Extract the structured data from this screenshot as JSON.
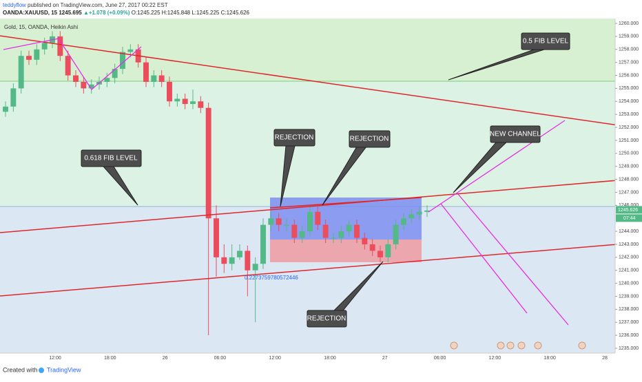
{
  "header": {
    "author": "teddyflow",
    "published": "published on TradingView.com, June 27, 2017 00:22 EST",
    "symbol": "OANDA:XAUUSD, 15",
    "last": "1245.695",
    "change": "▲+1.078 (+0.09%)",
    "ohlc": "O:1245.225 H:1245.848 L:1245.225 C:1245.626"
  },
  "legend": "Gold, 15, OANDA, Heikin Ashi",
  "candles": {
    "open": [
      1253.2,
      1253.6,
      1255,
      1257.5,
      1257.2,
      1258,
      1258.5,
      1259,
      1257.5,
      1256,
      1255.5,
      1255,
      1255.3,
      1255.5,
      1255.8,
      1256.5,
      1257.8,
      1258,
      1257,
      1255.5,
      1256,
      1255.5,
      1254,
      1254.2,
      1253.8,
      1254,
      1253.5,
      1245,
      1242,
      1241.5,
      1242,
      1242.5,
      1241,
      1241.5,
      1244.5,
      1245,
      1244.5,
      1244.5,
      1243.5,
      1244,
      1245.5,
      1244.5,
      1243.5,
      1243.5,
      1244,
      1244.5,
      1243.5,
      1243,
      1242.5,
      1242,
      1243,
      1244.5,
      1245,
      1245.3,
      1245.5
    ],
    "high": [
      1254,
      1255.4,
      1257.9,
      1257.9,
      1258.4,
      1258.9,
      1259.4,
      1259.4,
      1257.9,
      1256.4,
      1255.9,
      1255.7,
      1255.9,
      1256.2,
      1256.9,
      1258.2,
      1258.4,
      1258.4,
      1257.4,
      1256.4,
      1256.4,
      1255.9,
      1254.6,
      1254.6,
      1254.9,
      1254.4,
      1253.9,
      1246,
      1243,
      1243,
      1243,
      1242.9,
      1242,
      1245,
      1245.5,
      1245.4,
      1245,
      1244.9,
      1244.4,
      1245.9,
      1245.9,
      1244.9,
      1243.9,
      1244.4,
      1244.9,
      1244.9,
      1243.9,
      1243.4,
      1242.9,
      1243.4,
      1244.9,
      1245.4,
      1245.7,
      1245.9,
      1246
    ],
    "low": [
      1252.8,
      1253.2,
      1254.6,
      1256.8,
      1256.8,
      1257.6,
      1258.1,
      1257.1,
      1255.6,
      1255.1,
      1254.6,
      1254.6,
      1254.9,
      1255.1,
      1255.4,
      1256.1,
      1257.4,
      1256.6,
      1255.1,
      1255.1,
      1255.1,
      1253.6,
      1253.6,
      1253.4,
      1253.4,
      1253.1,
      1236,
      1240.5,
      1240.8,
      1241,
      1241.8,
      1239,
      1237,
      1241.1,
      1244,
      1244,
      1244,
      1243.1,
      1243.1,
      1243.6,
      1244.1,
      1243.1,
      1243.1,
      1243.1,
      1243.6,
      1243.1,
      1242.6,
      1242.1,
      1241.6,
      1241.6,
      1242.6,
      1244.1,
      1244.6,
      1244.9,
      1245.1
    ],
    "close": [
      1253.6,
      1255,
      1257.5,
      1257.2,
      1258,
      1258.5,
      1259,
      1257.5,
      1256,
      1255.5,
      1255,
      1255.3,
      1255.5,
      1255.8,
      1256.5,
      1257.8,
      1258,
      1257,
      1255.5,
      1256,
      1255.5,
      1254,
      1254.2,
      1253.8,
      1254,
      1253.5,
      1245,
      1242,
      1241.5,
      1242,
      1242.5,
      1241,
      1241.5,
      1244.5,
      1245,
      1244.5,
      1244.5,
      1243.5,
      1244,
      1245.5,
      1244.5,
      1243.5,
      1243.5,
      1244,
      1244.5,
      1243.5,
      1243,
      1242.5,
      1242,
      1243,
      1244.5,
      1245,
      1245.3,
      1245.5,
      1245.6
    ]
  },
  "price_axis": {
    "range": [
      1235,
      1260
    ],
    "ticks": [
      {
        "value": 1235,
        "label": "1235.000"
      },
      {
        "value": 1236,
        "label": "1236.000"
      },
      {
        "value": 1237,
        "label": "1237.000"
      },
      {
        "value": 1238,
        "label": "1238.000"
      },
      {
        "value": 1239,
        "label": "1239.000"
      },
      {
        "value": 1240,
        "label": "1240.000"
      },
      {
        "value": 1241,
        "label": "1241.000"
      },
      {
        "value": 1242,
        "label": "1242.000"
      },
      {
        "value": 1243,
        "label": "1243.000"
      },
      {
        "value": 1244,
        "label": "1244.000"
      },
      {
        "value": 1246,
        "label": "1246.000"
      },
      {
        "value": 1247,
        "label": "1247.000"
      },
      {
        "value": 1248,
        "label": "1248.000"
      },
      {
        "value": 1249,
        "label": "1249.000"
      },
      {
        "value": 1250,
        "label": "1250.000"
      },
      {
        "value": 1251,
        "label": "1251.000"
      },
      {
        "value": 1252,
        "label": "1252.000"
      },
      {
        "value": 1253,
        "label": "1253.000"
      },
      {
        "value": 1254,
        "label": "1254.000"
      },
      {
        "value": 1255,
        "label": "1255.000"
      },
      {
        "value": 1256,
        "label": "1256.000"
      },
      {
        "value": 1257,
        "label": "1257.000"
      },
      {
        "value": 1258,
        "label": "1258.000"
      },
      {
        "value": 1259,
        "label": "1259.000"
      },
      {
        "value": 1260,
        "label": "1260.000"
      }
    ],
    "current": {
      "value": 1245.626,
      "label": "1245.626"
    },
    "countdown": "07:44"
  },
  "time_axis": [
    "12:00",
    "18:00",
    "26",
    "06:00",
    "12:00",
    "18:00",
    "27",
    "06:00",
    "12:00",
    "18:00",
    "28"
  ],
  "annotations": {
    "fib_05": "0.5 FIB LEVEL",
    "fib_0618": "0.618 FIB LEVEL",
    "rejection_1": "REJECTION",
    "rejection_2": "REJECTION",
    "rejection_3": "REJECTION",
    "new_channel": "NEW CHANNEL",
    "ratio": "0.2273759780572446"
  },
  "footer": {
    "created": "Created with",
    "brand": "TradingView"
  }
}
